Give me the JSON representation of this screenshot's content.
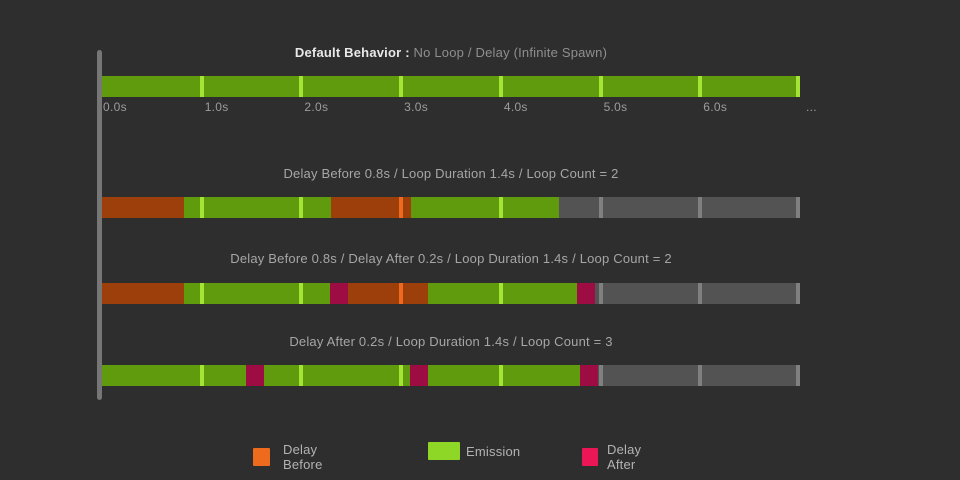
{
  "colors": {
    "background": "#2e2e2e",
    "axis_line": "#767676",
    "emission": "#5f9b0d",
    "emission_tick": "#a3e434",
    "delay_before": "#9c3f0a",
    "delay_before_tick": "#ef6a1e",
    "delay_after": "#9d0c43",
    "delay_after_tick": "#eb1655",
    "inactive": "#535353",
    "inactive_tick": "#808080",
    "legend_delay_before": "#ee6a1d",
    "legend_emission": "#8fd727",
    "legend_delay_after": "#eb1655"
  },
  "chart_data": {
    "type": "bar",
    "variant": "horizontal-timeline-gantt",
    "xlim": [
      0,
      7
    ],
    "grid": "ticks every 1.0s drawn as bright stripes inside each bar, plus end cap at 7.0s",
    "x_ticks": [
      "0.0s",
      "1.0s",
      "2.0s",
      "3.0s",
      "4.0s",
      "5.0s",
      "6.0s",
      "..."
    ],
    "legend_position": "bottom",
    "legend": [
      {
        "label": "Delay Before",
        "kind": "delay_before"
      },
      {
        "label": "Emission",
        "kind": "emission"
      },
      {
        "label": "Delay After",
        "kind": "delay_after"
      }
    ],
    "params": [
      {
        "delay_before_s": null,
        "delay_after_s": null,
        "loop_duration_s": null,
        "loop_count": "infinite"
      },
      {
        "delay_before_s": 0.8,
        "delay_after_s": null,
        "loop_duration_s": 1.4,
        "loop_count": 2
      },
      {
        "delay_before_s": 0.8,
        "delay_after_s": 0.2,
        "loop_duration_s": 1.4,
        "loop_count": 2
      },
      {
        "delay_before_s": null,
        "delay_after_s": 0.2,
        "loop_duration_s": 1.4,
        "loop_count": 3
      }
    ],
    "rows": [
      {
        "title_strong": "Default Behavior :",
        "title": " No Loop / Delay (Infinite Spawn)",
        "segments": [
          {
            "kind": "emission",
            "start": 0,
            "end": 7.0
          }
        ]
      },
      {
        "title_strong": "",
        "title": "Delay Before 0.8s / Loop Duration 1.4s / Loop Count = 2",
        "segments": [
          {
            "kind": "delay_before",
            "start": 0,
            "end": 0.82
          },
          {
            "kind": "emission",
            "start": 0.82,
            "end": 2.3
          },
          {
            "kind": "delay_before",
            "start": 2.3,
            "end": 3.1
          },
          {
            "kind": "emission",
            "start": 3.1,
            "end": 4.58
          },
          {
            "kind": "inactive",
            "start": 4.58,
            "end": 7.0
          }
        ]
      },
      {
        "title_strong": "",
        "title": "Delay Before 0.8s / Delay After 0.2s / Loop Duration 1.4s / Loop Count = 2",
        "segments": [
          {
            "kind": "delay_before",
            "start": 0,
            "end": 0.82
          },
          {
            "kind": "emission",
            "start": 0.82,
            "end": 2.29
          },
          {
            "kind": "delay_after",
            "start": 2.29,
            "end": 2.47
          },
          {
            "kind": "delay_before",
            "start": 2.47,
            "end": 3.27
          },
          {
            "kind": "emission",
            "start": 3.27,
            "end": 4.76
          },
          {
            "kind": "delay_after",
            "start": 4.76,
            "end": 4.94
          },
          {
            "kind": "inactive",
            "start": 4.94,
            "end": 7.0
          }
        ]
      },
      {
        "title_strong": "",
        "title": "Delay After 0.2s / Loop Duration 1.4s / Loop Count = 3",
        "segments": [
          {
            "kind": "emission",
            "start": 0,
            "end": 1.44
          },
          {
            "kind": "delay_after",
            "start": 1.44,
            "end": 1.62
          },
          {
            "kind": "emission",
            "start": 1.62,
            "end": 3.09
          },
          {
            "kind": "delay_after",
            "start": 3.09,
            "end": 3.27
          },
          {
            "kind": "emission",
            "start": 3.27,
            "end": 4.79
          },
          {
            "kind": "delay_after",
            "start": 4.79,
            "end": 4.97
          },
          {
            "kind": "inactive",
            "start": 4.97,
            "end": 7.0
          }
        ]
      }
    ]
  }
}
